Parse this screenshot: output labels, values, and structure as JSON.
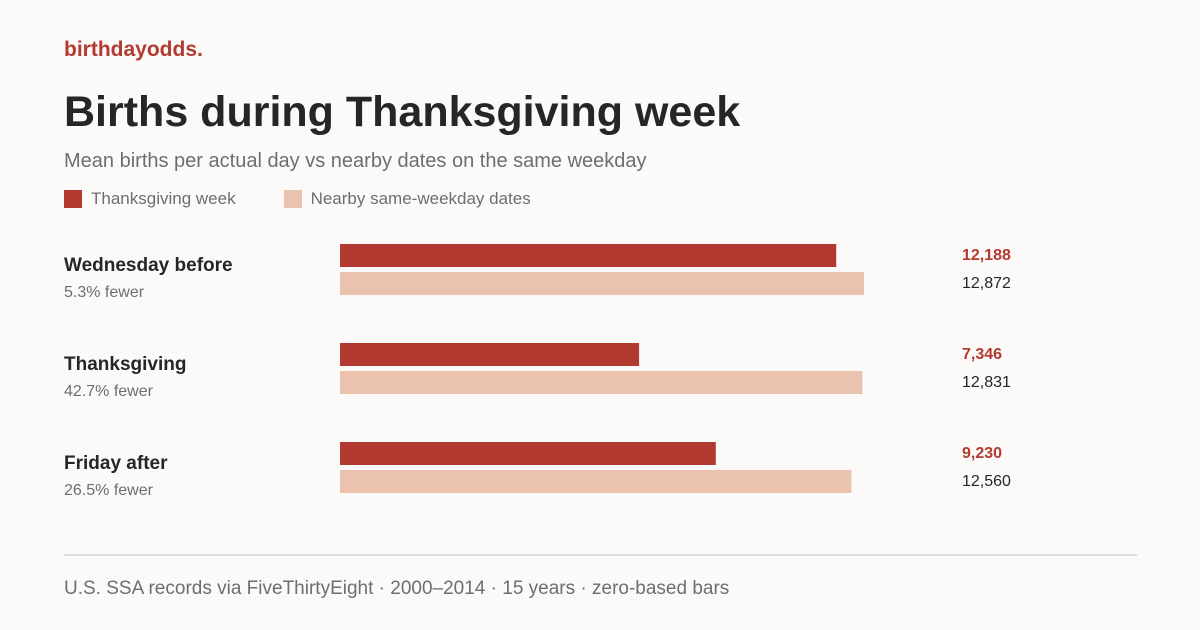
{
  "brand": "birthdayodds.",
  "colors": {
    "primary": "#b23a30",
    "secondary": "#ebc2ad",
    "label": "#262626",
    "muted": "#6e6e6e"
  },
  "chart_data": {
    "type": "bar",
    "orientation": "horizontal",
    "title": "Births during Thanksgiving week",
    "subtitle": "Mean births per actual day vs nearby dates on the same weekday",
    "xlabel": "",
    "ylabel": "",
    "xlim": [
      0,
      14000
    ],
    "grid": false,
    "legend_position": "top-left",
    "categories": [
      "Wednesday before",
      "Thanksgiving",
      "Friday after"
    ],
    "category_notes": [
      "5.3% fewer",
      "42.7% fewer",
      "26.5% fewer"
    ],
    "series": [
      {
        "name": "Thanksgiving week",
        "color": "#b23a30",
        "values": [
          12188,
          7346,
          9230
        ],
        "labels": [
          "12,188",
          "7,346",
          "9,230"
        ]
      },
      {
        "name": "Nearby same-weekday dates",
        "color": "#ebc2ad",
        "values": [
          12872,
          12831,
          12560
        ],
        "labels": [
          "12,872",
          "12,831",
          "12,560"
        ]
      }
    ]
  },
  "footer": "U.S. SSA records via FiveThirtyEight · 2000–2014 · 15 years · zero-based bars"
}
